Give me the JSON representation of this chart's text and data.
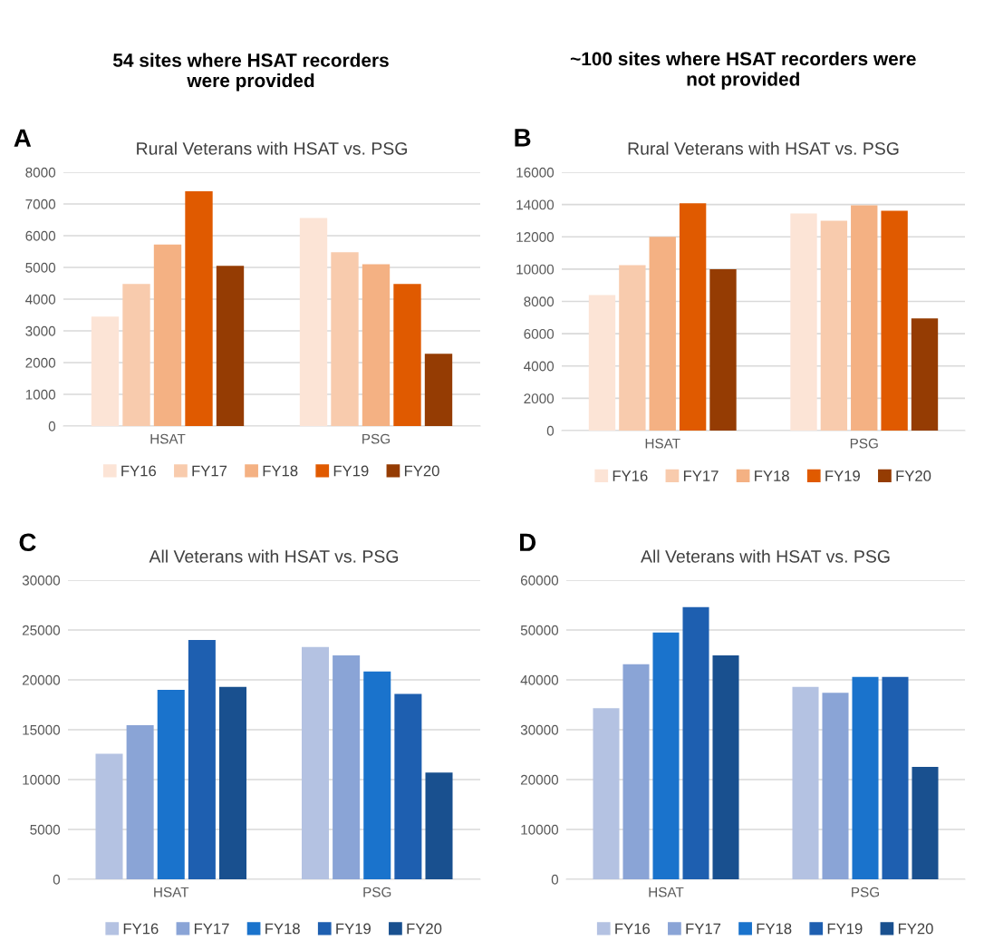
{
  "chart_data": [
    {
      "type": "bar",
      "subtitle": "54 sites where HSAT recorders\nwere provided",
      "title": "Rural Veterans with HSAT vs. PSG",
      "annotations": [
        "A"
      ],
      "categories": [
        "HSAT",
        "PSG"
      ],
      "ylim": [
        0,
        8000
      ],
      "yticks": [
        0,
        1000,
        2000,
        3000,
        4000,
        5000,
        6000,
        7000,
        8000
      ],
      "grid": "y",
      "legend": "bottom",
      "series": [
        {
          "name": "FY16",
          "color": "#fce4d6",
          "values": [
            3450,
            6560
          ]
        },
        {
          "name": "FY17",
          "color": "#f8cbad",
          "values": [
            4480,
            5480
          ]
        },
        {
          "name": "FY18",
          "color": "#f4b183",
          "values": [
            5720,
            5100
          ]
        },
        {
          "name": "FY19",
          "color": "#e05a00",
          "values": [
            7400,
            4480
          ]
        },
        {
          "name": "FY20",
          "color": "#953c03",
          "values": [
            5050,
            2280
          ]
        }
      ]
    },
    {
      "type": "bar",
      "subtitle": "~100 sites where HSAT recorders were\nnot provided",
      "title": "Rural Veterans with HSAT vs. PSG",
      "annotations": [
        "B"
      ],
      "categories": [
        "HSAT",
        "PSG"
      ],
      "ylim": [
        0,
        16000
      ],
      "yticks": [
        0,
        2000,
        4000,
        6000,
        8000,
        10000,
        12000,
        14000,
        16000
      ],
      "grid": "y",
      "legend": "bottom",
      "series": [
        {
          "name": "FY16",
          "color": "#fce4d6",
          "values": [
            8400,
            13450
          ]
        },
        {
          "name": "FY17",
          "color": "#f8cbad",
          "values": [
            10250,
            13000
          ]
        },
        {
          "name": "FY18",
          "color": "#f4b183",
          "values": [
            12000,
            13950
          ]
        },
        {
          "name": "FY19",
          "color": "#e05a00",
          "values": [
            14080,
            13620
          ]
        },
        {
          "name": "FY20",
          "color": "#953c03",
          "values": [
            10000,
            6950
          ]
        }
      ]
    },
    {
      "type": "bar",
      "title": "All Veterans with HSAT vs. PSG",
      "annotations": [
        "C"
      ],
      "categories": [
        "HSAT",
        "PSG"
      ],
      "ylim": [
        0,
        30000
      ],
      "yticks": [
        0,
        5000,
        10000,
        15000,
        20000,
        25000,
        30000
      ],
      "grid": "y",
      "legend": "bottom",
      "series": [
        {
          "name": "FY16",
          "color": "#b4c2e2",
          "values": [
            12600,
            23300
          ]
        },
        {
          "name": "FY17",
          "color": "#8aa4d6",
          "values": [
            15450,
            22450
          ]
        },
        {
          "name": "FY18",
          "color": "#1a73cc",
          "values": [
            19000,
            20850
          ]
        },
        {
          "name": "FY19",
          "color": "#1e5fb0",
          "values": [
            24000,
            18600
          ]
        },
        {
          "name": "FY20",
          "color": "#19508f",
          "values": [
            19300,
            10700
          ]
        }
      ]
    },
    {
      "type": "bar",
      "title": "All Veterans with HSAT vs. PSG",
      "annotations": [
        "D"
      ],
      "categories": [
        "HSAT",
        "PSG"
      ],
      "ylim": [
        0,
        60000
      ],
      "yticks": [
        0,
        10000,
        20000,
        30000,
        40000,
        50000,
        60000
      ],
      "grid": "y",
      "legend": "bottom",
      "series": [
        {
          "name": "FY16",
          "color": "#b4c2e2",
          "values": [
            34300,
            38600
          ]
        },
        {
          "name": "FY17",
          "color": "#8aa4d6",
          "values": [
            43150,
            37400
          ]
        },
        {
          "name": "FY18",
          "color": "#1a73cc",
          "values": [
            49500,
            40600
          ]
        },
        {
          "name": "FY19",
          "color": "#1e5fb0",
          "values": [
            54600,
            40600
          ]
        },
        {
          "name": "FY20",
          "color": "#19508f",
          "values": [
            44900,
            22550
          ]
        }
      ]
    }
  ]
}
